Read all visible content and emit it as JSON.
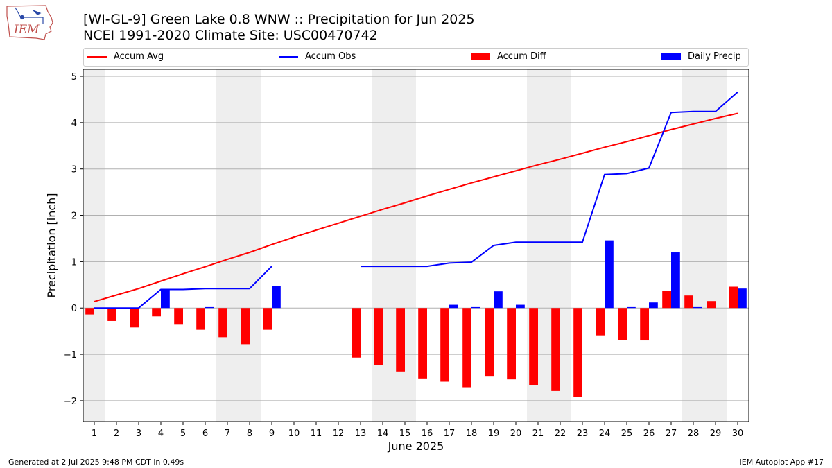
{
  "header": {
    "logo_text": "IEM",
    "title_line1": "[WI-GL-9] Green Lake 0.8 WNW :: Precipitation for Jun 2025",
    "title_line2": "NCEI 1991-2020 Climate Site: USC00470742"
  },
  "footer": {
    "left": "Generated at 2 Jul 2025 9:48 PM CDT in 0.49s",
    "right": "IEM Autoplot App #17"
  },
  "colors": {
    "avg": "#ff0000",
    "obs": "#0000ff",
    "diff": "#ff0000",
    "daily": "#0000ff",
    "weekend_shade": "#eeeeee",
    "grid": "#b0b0b0"
  },
  "chart_data": {
    "type": "bar",
    "xlabel": "June 2025",
    "ylabel": "Precipitation [inch]",
    "xlim": [
      0.5,
      30.5
    ],
    "ylim": [
      -2.45,
      5.15
    ],
    "yticks": [
      -2,
      -1,
      0,
      1,
      2,
      3,
      4,
      5
    ],
    "ytick_labels": [
      "−2",
      "−1",
      "0",
      "1",
      "2",
      "3",
      "4",
      "5"
    ],
    "days": [
      1,
      2,
      3,
      4,
      5,
      6,
      7,
      8,
      9,
      10,
      11,
      12,
      13,
      14,
      15,
      16,
      17,
      18,
      19,
      20,
      21,
      22,
      23,
      24,
      25,
      26,
      27,
      28,
      29,
      30
    ],
    "grid": "horizontal",
    "legend_position": "top",
    "shaded_weekends": [
      1,
      7,
      8,
      14,
      15,
      21,
      22,
      28,
      29
    ],
    "legend": {
      "accum_avg": "Accum Avg",
      "accum_obs": "Accum Obs",
      "accum_diff": "Accum Diff",
      "daily_precip": "Daily Precip"
    },
    "series": [
      {
        "name": "Accum Avg",
        "type": "line",
        "values": [
          0.14,
          0.28,
          0.42,
          0.58,
          0.74,
          0.89,
          1.05,
          1.2,
          1.37,
          1.53,
          1.68,
          1.83,
          1.98,
          2.13,
          2.27,
          2.42,
          2.56,
          2.7,
          2.83,
          2.96,
          3.09,
          3.21,
          3.34,
          3.47,
          3.59,
          3.72,
          3.85,
          3.97,
          4.09,
          4.2
        ]
      },
      {
        "name": "Accum Obs",
        "type": "line",
        "values": [
          0.0,
          0.0,
          0.0,
          0.4,
          0.4,
          0.42,
          0.42,
          0.42,
          0.9,
          null,
          null,
          null,
          0.9,
          0.9,
          0.9,
          0.9,
          0.97,
          0.99,
          1.35,
          1.42,
          1.42,
          1.42,
          1.42,
          2.88,
          2.9,
          3.02,
          4.22,
          4.24,
          4.24,
          4.66
        ]
      },
      {
        "name": "Accum Diff",
        "type": "bar",
        "values": [
          -0.14,
          -0.28,
          -0.42,
          -0.18,
          -0.36,
          -0.47,
          -0.63,
          -0.78,
          -0.47,
          null,
          null,
          null,
          -1.07,
          -1.23,
          -1.37,
          -1.52,
          -1.59,
          -1.71,
          -1.48,
          -1.54,
          -1.67,
          -1.79,
          -1.92,
          -0.59,
          -0.69,
          -0.7,
          0.37,
          0.27,
          0.15,
          0.46
        ]
      },
      {
        "name": "Daily Precip",
        "type": "bar",
        "values": [
          0.0,
          0.0,
          0.0,
          0.4,
          0.0,
          0.02,
          0.0,
          0.0,
          0.48,
          null,
          null,
          null,
          0.0,
          0.0,
          0.0,
          0.0,
          0.07,
          0.02,
          0.36,
          0.07,
          0.0,
          0.0,
          0.0,
          1.46,
          0.02,
          0.12,
          1.2,
          0.02,
          0.0,
          0.42
        ]
      }
    ]
  }
}
